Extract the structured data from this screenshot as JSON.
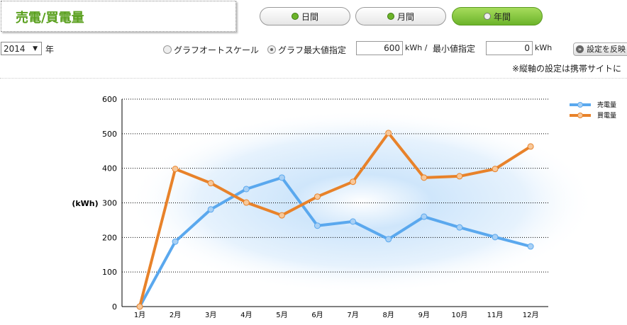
{
  "title": "売電/買電量",
  "tabs": [
    {
      "label": "日間",
      "active": false
    },
    {
      "label": "月間",
      "active": false
    },
    {
      "label": "年間",
      "active": true
    }
  ],
  "year": {
    "value": "2014",
    "suffix": "年"
  },
  "scale": {
    "auto_label": "グラフオートスケール",
    "max_label": "グラフ最大値指定",
    "selected": "max",
    "max_value": "600",
    "unit1": "kWh /",
    "min_label": "最小値指定",
    "min_value": "0",
    "unit2": "kWh"
  },
  "apply_label": "設定を反映",
  "note": "※縦軸の設定は携帯サイトに",
  "chart_data": {
    "type": "line",
    "ylabel": "(kWh)",
    "ylim": [
      0,
      600
    ],
    "yticks": [
      "0",
      "100",
      "200",
      "300",
      "400",
      "500",
      "600"
    ],
    "categories": [
      "1月",
      "2月",
      "3月",
      "4月",
      "5月",
      "6月",
      "7月",
      "8月",
      "9月",
      "10月",
      "11月",
      "12月"
    ],
    "series": [
      {
        "name": "売電量",
        "color": "#5aa8ee",
        "values": [
          0,
          188,
          281,
          340,
          373,
          234,
          246,
          195,
          260,
          229,
          201,
          174
        ]
      },
      {
        "name": "買電量",
        "color": "#e8822a",
        "values": [
          0,
          398,
          357,
          301,
          264,
          318,
          361,
          502,
          373,
          377,
          398,
          463
        ]
      }
    ],
    "legend": "top-right",
    "grid": true
  }
}
